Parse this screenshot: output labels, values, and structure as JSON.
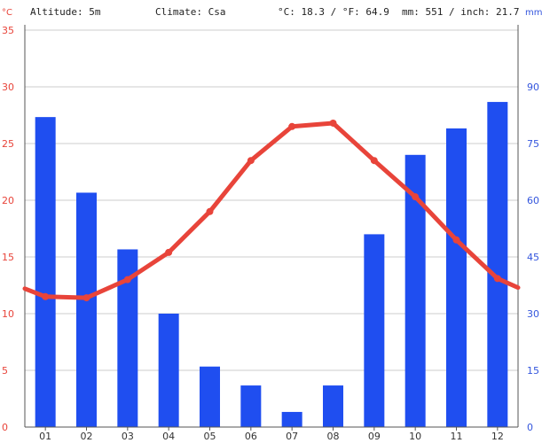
{
  "header": {
    "altitude": "Altitude: 5m",
    "climate": "Climate: Csa",
    "temperature": "°C: 18.3 / °F: 64.9",
    "precipitation": "mm: 551 / inch: 21.7"
  },
  "colors": {
    "temperature": "#e8443a",
    "precipitation": "#1f4ef0",
    "grid": "#cccccc"
  },
  "chart_data": {
    "type": "bar",
    "categories": [
      "01",
      "02",
      "03",
      "04",
      "05",
      "06",
      "07",
      "08",
      "09",
      "10",
      "11",
      "12"
    ],
    "y_left": {
      "unit": "°C",
      "ticks": [
        "0",
        "5",
        "10",
        "15",
        "20",
        "25",
        "30",
        "35"
      ],
      "range": [
        0,
        35
      ]
    },
    "y_right": {
      "unit": "mm",
      "ticks": [
        "0",
        "15",
        "30",
        "45",
        "60",
        "75",
        "90"
      ],
      "range": [
        0,
        105
      ]
    },
    "series": [
      {
        "kind": "bar",
        "axis": "right",
        "values": [
          82,
          62,
          47,
          30,
          16,
          11,
          4,
          11,
          51,
          72,
          79,
          86
        ]
      },
      {
        "kind": "line",
        "axis": "left",
        "values": [
          11.5,
          11.4,
          13.0,
          15.4,
          19.0,
          23.5,
          26.5,
          26.8,
          23.5,
          20.3,
          16.5,
          13.1
        ],
        "start_value": 12.2,
        "end_value": 12.3
      }
    ],
    "grid": true
  }
}
